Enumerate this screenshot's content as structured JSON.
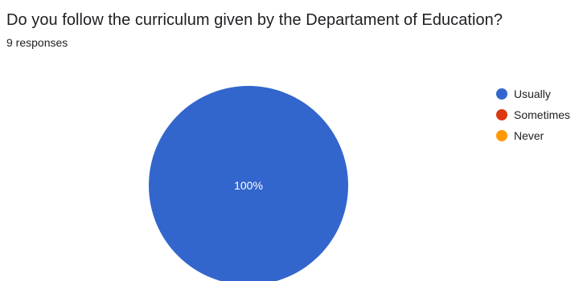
{
  "question": {
    "title": "Do you follow the curriculum given by the Departament of Education?",
    "responses": "9 responses"
  },
  "colors": {
    "Usually": "#3366cc",
    "Sometimes": "#dc3912",
    "Never": "#ff9900"
  },
  "chart_data": {
    "type": "pie",
    "categories": [
      "Usually",
      "Sometimes",
      "Never"
    ],
    "values": [
      9,
      0,
      0
    ],
    "labels": [
      "100%",
      "",
      ""
    ],
    "legend": "right"
  }
}
